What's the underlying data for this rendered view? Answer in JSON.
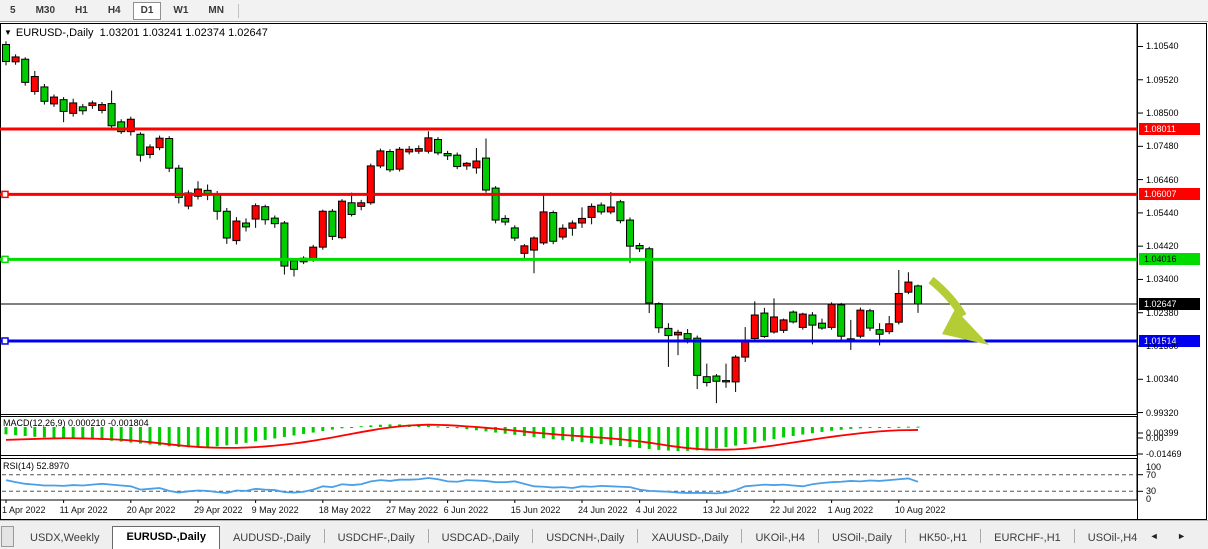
{
  "toolbar": {
    "timeframes": [
      {
        "label": "5",
        "active": false
      },
      {
        "label": "M30",
        "active": false
      },
      {
        "label": "H1",
        "active": false
      },
      {
        "label": "H4",
        "active": false
      },
      {
        "label": "D1",
        "active": true
      },
      {
        "label": "W1",
        "active": false
      },
      {
        "label": "MN",
        "active": false
      }
    ]
  },
  "window": {
    "symbol_title": "EURUSD-,Daily",
    "ohlc_text": "1.03201 1.03241 1.02374 1.02647",
    "dropdown_icon": "▼",
    "current_candle": {
      "open": "1.03201",
      "high": "1.03241",
      "low": "1.02374",
      "close": "1.02647"
    }
  },
  "price_scale": {
    "labels": [
      "1.10540",
      "1.09520",
      "1.08500",
      "1.07480",
      "1.06460",
      "1.05440",
      "1.04420",
      "1.03400",
      "1.02380",
      "1.01360",
      "1.00340",
      "0.99320"
    ]
  },
  "hlines": [
    {
      "price": 1.08011,
      "label": "1.08011",
      "color": "#fe0000",
      "badge_bg": "#fe0000",
      "badge_fg": "#ffffff",
      "width": 3,
      "handle": false
    },
    {
      "price": 1.06007,
      "label": "1.06007",
      "color": "#fe0000",
      "badge_bg": "#fe0000",
      "badge_fg": "#ffffff",
      "width": 3,
      "handle": true
    },
    {
      "price": 1.04016,
      "label": "1.04016",
      "color": "#00dc00",
      "badge_bg": "#00dc00",
      "badge_fg": "#000000",
      "width": 3,
      "handle": true
    },
    {
      "price": 1.02647,
      "label": "1.02647",
      "color": "#000000",
      "badge_bg": "#000000",
      "badge_fg": "#ffffff",
      "width": 1,
      "handle": false
    },
    {
      "price": 1.01514,
      "label": "1.01514",
      "color": "#0000f0",
      "badge_bg": "#0000f0",
      "badge_fg": "#ffffff",
      "width": 3,
      "handle": true
    }
  ],
  "chart_data": {
    "type": "candlestick",
    "title": "EURUSD-,Daily",
    "x_ticks": [
      [
        0,
        "1 Apr 2022"
      ],
      [
        6,
        "11 Apr 2022"
      ],
      [
        13,
        "20 Apr 2022"
      ],
      [
        20,
        "29 Apr 2022"
      ],
      [
        26,
        "9 May 2022"
      ],
      [
        33,
        "18 May 2022"
      ],
      [
        40,
        "27 May 2022"
      ],
      [
        46,
        "6 Jun 2022"
      ],
      [
        53,
        "15 Jun 2022"
      ],
      [
        60,
        "24 Jun 2022"
      ],
      [
        66,
        "4 Jul 2022"
      ],
      [
        73,
        "13 Jul 2022"
      ],
      [
        80,
        "22 Jul 2022"
      ],
      [
        86,
        "1 Aug 2022"
      ],
      [
        93,
        "10 Aug 2022"
      ]
    ],
    "price_axis": {
      "p_top": 1.11229,
      "p_bottom": 0.99276,
      "ylim": [
        0.99276,
        1.11229
      ]
    },
    "colors": {
      "bull": "#fe0000",
      "bear": "#00cc00",
      "wick": "#000000",
      "body_border": "#000000",
      "macd_hist": "#00cc00",
      "macd_signal": "#fe0000",
      "rsi_line": "#4aa0e8",
      "arrow": "#b5cd34"
    },
    "candles": [
      [
        1.106,
        1.107,
        1.0996,
        1.1008
      ],
      [
        1.1007,
        1.103,
        1.0998,
        1.1022
      ],
      [
        1.1015,
        1.1021,
        1.0934,
        1.0944
      ],
      [
        1.0916,
        1.0979,
        1.0906,
        1.0962
      ],
      [
        1.093,
        1.0939,
        1.0876,
        1.0886
      ],
      [
        1.0878,
        1.0907,
        1.0869,
        1.0899
      ],
      [
        1.0891,
        1.0899,
        1.0822,
        1.0855
      ],
      [
        1.0849,
        1.0894,
        1.0839,
        1.0881
      ],
      [
        1.0869,
        1.0878,
        1.0845,
        1.0857
      ],
      [
        1.0873,
        1.0888,
        1.0863,
        1.0881
      ],
      [
        1.0858,
        1.0884,
        1.0849,
        1.0876
      ],
      [
        1.0879,
        1.0919,
        1.0803,
        1.0811
      ],
      [
        1.0823,
        1.0831,
        1.0786,
        1.0793
      ],
      [
        1.0793,
        1.0839,
        1.0781,
        1.0831
      ],
      [
        1.0785,
        1.0791,
        1.0701,
        1.0721
      ],
      [
        1.0723,
        1.0754,
        1.0711,
        1.0746
      ],
      [
        1.0744,
        1.0781,
        1.0736,
        1.0773
      ],
      [
        1.0772,
        1.0779,
        1.0669,
        1.0681
      ],
      [
        1.0681,
        1.0691,
        1.0573,
        1.0591
      ],
      [
        1.0565,
        1.0613,
        1.0555,
        1.0605
      ],
      [
        1.0595,
        1.0641,
        1.0585,
        1.0617
      ],
      [
        1.0613,
        1.0631,
        1.0583,
        1.0599
      ],
      [
        1.0601,
        1.0611,
        1.0523,
        1.0549
      ],
      [
        1.0549,
        1.0559,
        1.0449,
        1.0467
      ],
      [
        1.0459,
        1.0531,
        1.0447,
        1.0519
      ],
      [
        1.0513,
        1.0527,
        1.0487,
        1.0501
      ],
      [
        1.0525,
        1.0573,
        1.0498,
        1.0566
      ],
      [
        1.0563,
        1.0569,
        1.0508,
        1.0523
      ],
      [
        1.0528,
        1.0536,
        1.0498,
        1.0511
      ],
      [
        1.0513,
        1.0519,
        1.0355,
        1.0381
      ],
      [
        1.0397,
        1.0401,
        1.0349,
        1.0371
      ],
      [
        1.0394,
        1.0411,
        1.0387,
        1.0405
      ],
      [
        1.04,
        1.0446,
        1.0394,
        1.0439
      ],
      [
        1.0439,
        1.0554,
        1.0431,
        1.0549
      ],
      [
        1.0549,
        1.0556,
        1.0461,
        1.0472
      ],
      [
        1.0468,
        1.0586,
        1.0463,
        1.058
      ],
      [
        1.0575,
        1.0606,
        1.0533,
        1.0539
      ],
      [
        1.0564,
        1.0584,
        1.0552,
        1.0575
      ],
      [
        1.0575,
        1.0695,
        1.0569,
        1.0688
      ],
      [
        1.0688,
        1.0741,
        1.0681,
        1.0734
      ],
      [
        1.0732,
        1.0739,
        1.0669,
        1.0676
      ],
      [
        1.0678,
        1.0746,
        1.0671,
        1.0739
      ],
      [
        1.0731,
        1.0749,
        1.0723,
        1.0739
      ],
      [
        1.0733,
        1.0751,
        1.0725,
        1.0741
      ],
      [
        1.0733,
        1.0794,
        1.0726,
        1.0774
      ],
      [
        1.0769,
        1.0776,
        1.0721,
        1.0728
      ],
      [
        1.0726,
        1.0734,
        1.0706,
        1.0719
      ],
      [
        1.0721,
        1.0729,
        1.0678,
        1.0686
      ],
      [
        1.0688,
        1.07,
        1.0676,
        1.0696
      ],
      [
        1.0682,
        1.0743,
        1.0664,
        1.0703
      ],
      [
        1.0712,
        1.0772,
        1.0606,
        1.0614
      ],
      [
        1.062,
        1.0626,
        1.0512,
        1.0522
      ],
      [
        1.0527,
        1.0537,
        1.0506,
        1.0516
      ],
      [
        1.0498,
        1.0506,
        1.0458,
        1.0467
      ],
      [
        1.042,
        1.0448,
        1.0398,
        1.0443
      ],
      [
        1.043,
        1.0472,
        1.0359,
        1.0467
      ],
      [
        1.0452,
        1.0599,
        1.0446,
        1.0547
      ],
      [
        1.0545,
        1.0551,
        1.0448,
        1.0457
      ],
      [
        1.047,
        1.0509,
        1.0462,
        1.0497
      ],
      [
        1.0497,
        1.0521,
        1.0474,
        1.0513
      ],
      [
        1.0513,
        1.0561,
        1.0498,
        1.0527
      ],
      [
        1.053,
        1.0573,
        1.0509,
        1.0564
      ],
      [
        1.0568,
        1.0576,
        1.0539,
        1.0547
      ],
      [
        1.0547,
        1.0608,
        1.054,
        1.0562
      ],
      [
        1.0578,
        1.0584,
        1.0512,
        1.052
      ],
      [
        1.0522,
        1.053,
        1.039,
        1.0442
      ],
      [
        1.0444,
        1.0452,
        1.0424,
        1.0434
      ],
      [
        1.0434,
        1.044,
        1.0237,
        1.0268
      ],
      [
        1.0266,
        1.027,
        1.0176,
        1.0192
      ],
      [
        1.019,
        1.0206,
        1.0072,
        1.0168
      ],
      [
        1.017,
        1.0186,
        1.0108,
        1.0178
      ],
      [
        1.0174,
        1.0188,
        1.0144,
        1.0158
      ],
      [
        1.016,
        1.0168,
        1.0004,
        1.0046
      ],
      [
        1.0042,
        1.0082,
        1.0012,
        1.0024
      ],
      [
        1.0044,
        1.005,
        0.9961,
        1.0028
      ],
      [
        1.003,
        1.0082,
        1.0008,
        1.0026
      ],
      [
        1.0026,
        1.0108,
        0.9995,
        1.0102
      ],
      [
        1.0102,
        1.0194,
        1.0087,
        1.0154
      ],
      [
        1.0159,
        1.0273,
        1.015,
        1.0231
      ],
      [
        1.0237,
        1.0253,
        1.0161,
        1.0165
      ],
      [
        1.0179,
        1.0282,
        1.0174,
        1.0225
      ],
      [
        1.0184,
        1.022,
        1.0176,
        1.0216
      ],
      [
        1.024,
        1.0245,
        1.0205,
        1.021
      ],
      [
        1.0193,
        1.0238,
        1.0186,
        1.0234
      ],
      [
        1.0231,
        1.024,
        1.0141,
        1.02
      ],
      [
        1.0206,
        1.022,
        1.0186,
        1.0191
      ],
      [
        1.0193,
        1.027,
        1.0186,
        1.0264
      ],
      [
        1.0262,
        1.0268,
        1.0152,
        1.0166
      ],
      [
        1.0158,
        1.0216,
        1.0124,
        1.0152
      ],
      [
        1.0166,
        1.0254,
        1.016,
        1.0246
      ],
      [
        1.0244,
        1.025,
        1.0182,
        1.0191
      ],
      [
        1.0186,
        1.0206,
        1.0138,
        1.0172
      ],
      [
        1.018,
        1.0228,
        1.0172,
        1.0204
      ],
      [
        1.0209,
        1.0369,
        1.0202,
        1.0297
      ],
      [
        1.0301,
        1.0362,
        1.0295,
        1.0332
      ],
      [
        1.03201,
        1.03241,
        1.02374,
        1.02647
      ]
    ],
    "indicators": {
      "macd": {
        "name": "MACD(12,26,9)",
        "value": "0.000210",
        "signal_value": "-0.001804",
        "full_text": "MACD(12,26,9) 0.000210 -0.001804",
        "scale_labels": [
          "0.00399",
          "0.00",
          "-0.01469"
        ],
        "vmax": 0.00399,
        "vmin": -0.01469,
        "histogram": [
          -4.5,
          -5.0,
          -5.5,
          -6.0,
          -6.4,
          -6.7,
          -7.0,
          -7.2,
          -7.4,
          -7.7,
          -8.0,
          -8.4,
          -8.9,
          -9.5,
          -10.1,
          -10.7,
          -11.3,
          -11.8,
          -12.2,
          -12.4,
          -12.4,
          -12.2,
          -11.8,
          -11.2,
          -10.5,
          -9.7,
          -8.8,
          -7.9,
          -7.0,
          -6.1,
          -5.2,
          -4.3,
          -3.4,
          -2.5,
          -1.6,
          -0.8,
          -0.1,
          0.5,
          1.0,
          1.4,
          1.6,
          1.6,
          1.4,
          1.1,
          0.8,
          0.4,
          -0.1,
          -0.7,
          -1.3,
          -2.0,
          -2.7,
          -3.4,
          -4.1,
          -4.8,
          -5.5,
          -6.2,
          -6.9,
          -7.5,
          -8.1,
          -8.7,
          -9.3,
          -9.9,
          -10.5,
          -11.1,
          -11.7,
          -12.3,
          -12.9,
          -13.5,
          -14.0,
          -14.4,
          -14.7,
          -14.6,
          -14.3,
          -13.8,
          -13.1,
          -12.3,
          -11.4,
          -10.4,
          -9.4,
          -8.4,
          -7.4,
          -6.4,
          -5.5,
          -4.6,
          -3.8,
          -3.0,
          -2.3,
          -1.7,
          -1.2,
          -0.8,
          -0.5,
          -0.2,
          0.0,
          0.1,
          0.2,
          0.21
        ],
        "signal": [
          -7.9,
          -7.7,
          -7.5,
          -7.3,
          -7.1,
          -7.0,
          -6.9,
          -6.9,
          -7.0,
          -7.1,
          -7.3,
          -7.5,
          -7.8,
          -8.2,
          -8.7,
          -9.3,
          -9.9,
          -10.6,
          -11.2,
          -11.8,
          -12.2,
          -12.5,
          -12.7,
          -12.8,
          -12.8,
          -12.6,
          -12.3,
          -11.9,
          -11.4,
          -10.8,
          -10.1,
          -9.3,
          -8.4,
          -7.4,
          -6.4,
          -5.3,
          -4.2,
          -3.1,
          -2.1,
          -1.1,
          -0.3,
          0.4,
          0.9,
          1.2,
          1.4,
          1.3,
          1.1,
          0.8,
          0.4,
          0.0,
          -0.5,
          -1.0,
          -1.6,
          -2.2,
          -2.8,
          -3.4,
          -3.9,
          -4.4,
          -4.9,
          -5.3,
          -5.7,
          -6.1,
          -6.5,
          -7.0,
          -7.5,
          -8.1,
          -8.8,
          -9.6,
          -10.5,
          -11.4,
          -12.2,
          -12.9,
          -13.4,
          -13.8,
          -13.9,
          -13.9,
          -13.7,
          -13.3,
          -12.8,
          -12.1,
          -11.3,
          -10.4,
          -9.5,
          -8.6,
          -7.7,
          -6.8,
          -6.0,
          -5.2,
          -4.5,
          -3.8,
          -3.2,
          -2.7,
          -2.3,
          -2.0,
          -1.9,
          -1.8
        ],
        "unit": 0.001
      },
      "rsi": {
        "name": "RSI(14)",
        "value": "52.8970",
        "full_text": "RSI(14) 52.8970",
        "scale_labels": [
          "100",
          "70",
          "30",
          "0"
        ],
        "levels": [
          70,
          30
        ],
        "values": [
          57,
          52,
          48,
          46,
          44,
          44,
          43,
          45,
          44,
          46,
          48,
          46,
          44,
          42,
          34,
          36,
          38,
          31,
          27,
          30,
          32,
          31,
          28,
          26,
          32,
          31,
          36,
          34,
          33,
          28,
          27,
          29,
          34,
          42,
          40,
          47,
          45,
          47,
          54,
          57,
          55,
          58,
          58,
          59,
          62,
          59,
          54,
          53,
          57,
          56,
          55,
          52,
          52,
          54,
          48,
          42,
          41,
          39,
          40,
          38,
          42,
          41,
          43,
          42,
          41,
          40,
          34,
          31,
          30,
          29,
          27,
          26,
          26,
          26,
          25,
          27,
          33,
          42,
          44,
          46,
          45,
          46,
          44,
          42,
          47,
          50,
          52,
          53,
          55,
          54,
          56,
          55,
          57,
          59,
          61,
          52.897
        ]
      }
    },
    "annotations": [
      {
        "type": "down-right-arrow",
        "color": "#b5cd34",
        "shaft": [
          [
            931,
            280
          ],
          [
            951,
            296
          ],
          [
            963,
            316
          ]
        ],
        "head": [
          [
            955,
            309
          ],
          [
            989,
            345
          ],
          [
            942,
            334
          ]
        ]
      }
    ]
  },
  "tabs": {
    "items": [
      {
        "label": "USDX,Weekly",
        "active": false
      },
      {
        "label": "EURUSD-,Daily",
        "active": true
      },
      {
        "label": "AUDUSD-,Daily",
        "active": false
      },
      {
        "label": "USDCHF-,Daily",
        "active": false
      },
      {
        "label": "USDCAD-,Daily",
        "active": false
      },
      {
        "label": "USDCNH-,Daily",
        "active": false
      },
      {
        "label": "XAUUSD-,Daily",
        "active": false
      },
      {
        "label": "UKOil-,H4",
        "active": false
      },
      {
        "label": "USOil-,Daily",
        "active": false
      },
      {
        "label": "HK50-,H1",
        "active": false
      },
      {
        "label": "EURCHF-,H1",
        "active": false
      },
      {
        "label": "USOil-,H4",
        "active": false
      }
    ],
    "scroll_icons": "◄ ►"
  }
}
